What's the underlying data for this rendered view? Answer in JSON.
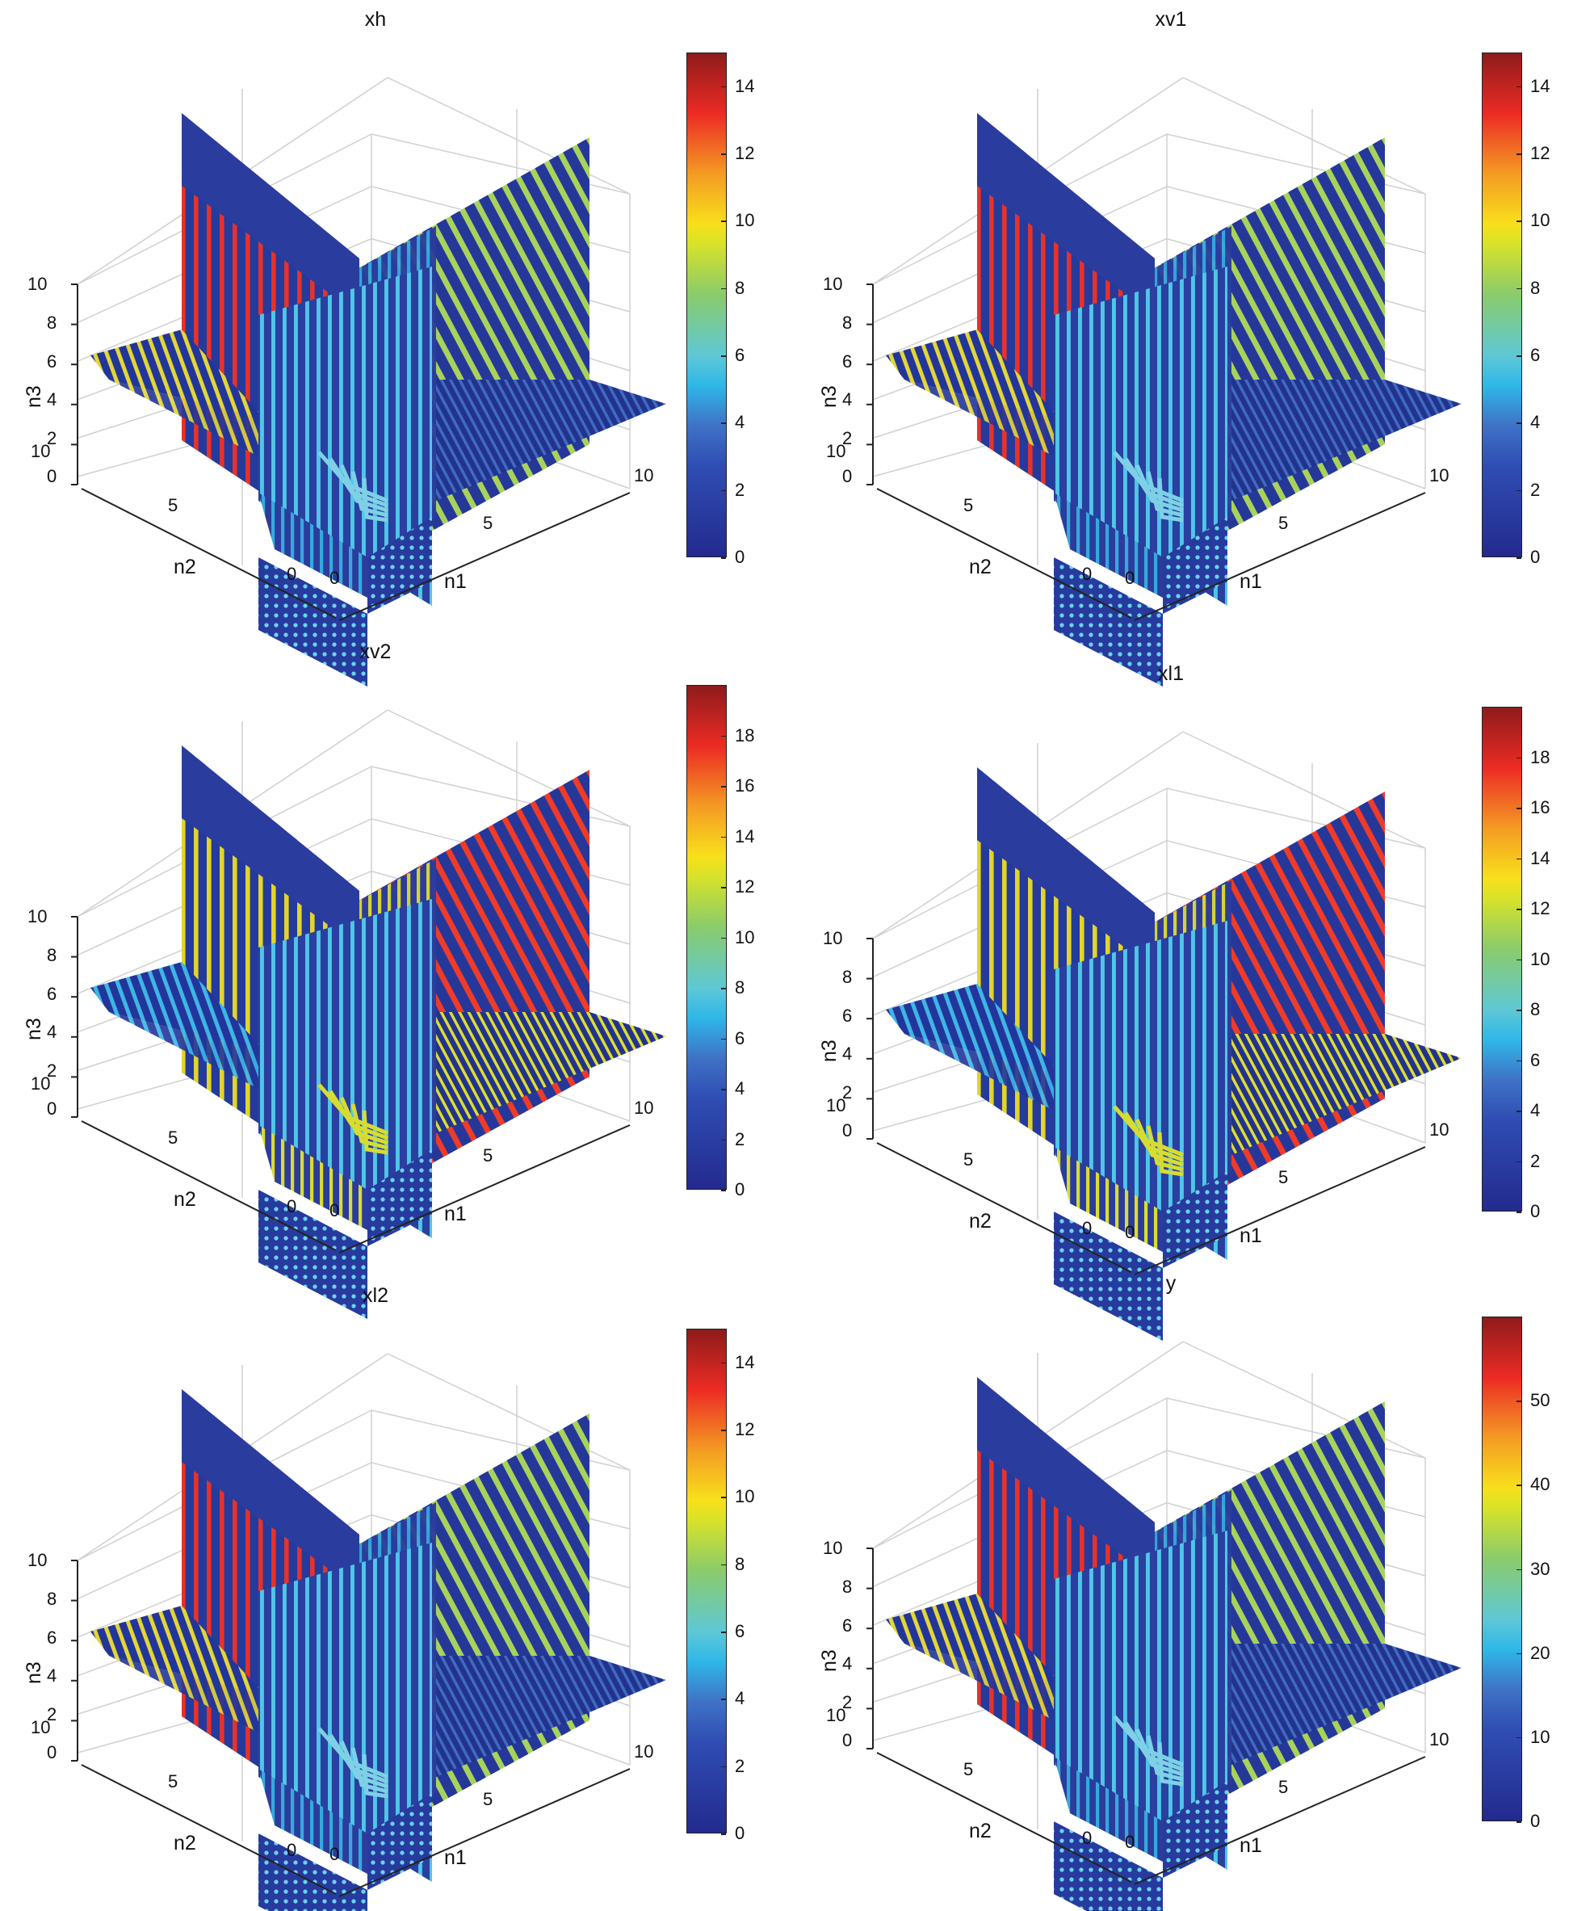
{
  "figure": {
    "layout": "3 rows x 2 columns of MATLAB slice() plots",
    "panels": [
      {
        "id": "xh",
        "title": "xh",
        "cbar_max": 15,
        "cbar_ticks": [
          "0",
          "2",
          "4",
          "6",
          "8",
          "10",
          "12",
          "14"
        ],
        "peak_color": "#e8312a"
      },
      {
        "id": "xv1",
        "title": "xv1",
        "cbar_max": 15,
        "cbar_ticks": [
          "0",
          "2",
          "4",
          "6",
          "8",
          "10",
          "12",
          "14"
        ],
        "peak_color": "#e8312a"
      },
      {
        "id": "xv2",
        "title": "xv2",
        "cbar_max": 20,
        "cbar_ticks": [
          "0",
          "2",
          "4",
          "6",
          "8",
          "10",
          "12",
          "14",
          "16",
          "18"
        ],
        "peak_color": "#d62a25"
      },
      {
        "id": "xl1",
        "title": "xl1",
        "cbar_max": 20,
        "cbar_ticks": [
          "0",
          "2",
          "4",
          "6",
          "8",
          "10",
          "12",
          "14",
          "16",
          "18"
        ],
        "peak_color": "#d62a25"
      },
      {
        "id": "xl2",
        "title": "xl2",
        "cbar_max": 15,
        "cbar_ticks": [
          "0",
          "2",
          "4",
          "6",
          "8",
          "10",
          "12",
          "14"
        ],
        "peak_color": "#e8312a"
      },
      {
        "id": "y",
        "title": "y",
        "cbar_max": 60,
        "cbar_ticks": [
          "0",
          "10",
          "20",
          "30",
          "40",
          "50"
        ],
        "peak_color": "#e8312a"
      }
    ],
    "axes": {
      "xlabel": "n1",
      "ylabel": "n2",
      "zlabel": "n3",
      "n1_ticks": [
        "0",
        "5",
        "10"
      ],
      "n2_ticks": [
        "0",
        "5",
        "10"
      ],
      "n3_ticks": [
        "0",
        "2",
        "4",
        "6",
        "8",
        "10"
      ]
    },
    "colormap": "jet"
  },
  "chart_data": [
    {
      "type": "heatmap",
      "title": "xh",
      "subtype": "3D volume slices",
      "xlabel": "n1",
      "ylabel": "n2",
      "zlabel": "n3",
      "xlim": [
        0,
        10
      ],
      "ylim": [
        0,
        10
      ],
      "zlim": [
        0,
        10
      ],
      "slices": {
        "n1": 2.5,
        "n2": 2.5,
        "n3": 3
      },
      "colorbar": {
        "min": 0,
        "max": 15,
        "ticks": [
          0,
          2,
          4,
          6,
          8,
          10,
          12,
          14
        ]
      },
      "colormap": "jet",
      "grid": true
    },
    {
      "type": "heatmap",
      "title": "xv1",
      "subtype": "3D volume slices",
      "xlabel": "n1",
      "ylabel": "n2",
      "zlabel": "n3",
      "xlim": [
        0,
        10
      ],
      "ylim": [
        0,
        10
      ],
      "zlim": [
        0,
        10
      ],
      "slices": {
        "n1": 2.5,
        "n2": 2.5,
        "n3": 3
      },
      "colorbar": {
        "min": 0,
        "max": 15,
        "ticks": [
          0,
          2,
          4,
          6,
          8,
          10,
          12,
          14
        ]
      },
      "colormap": "jet",
      "grid": true
    },
    {
      "type": "heatmap",
      "title": "xv2",
      "subtype": "3D volume slices",
      "xlabel": "n1",
      "ylabel": "n2",
      "zlabel": "n3",
      "xlim": [
        0,
        10
      ],
      "ylim": [
        0,
        10
      ],
      "zlim": [
        0,
        10
      ],
      "slices": {
        "n1": 2.5,
        "n2": 2.5,
        "n3": 3
      },
      "colorbar": {
        "min": 0,
        "max": 20,
        "ticks": [
          0,
          2,
          4,
          6,
          8,
          10,
          12,
          14,
          16,
          18
        ]
      },
      "colormap": "jet",
      "grid": true
    },
    {
      "type": "heatmap",
      "title": "xl1",
      "subtype": "3D volume slices",
      "xlabel": "n1",
      "ylabel": "n2",
      "zlabel": "n3",
      "xlim": [
        0,
        10
      ],
      "ylim": [
        0,
        10
      ],
      "zlim": [
        0,
        10
      ],
      "slices": {
        "n1": 2.5,
        "n2": 2.5,
        "n3": 3
      },
      "colorbar": {
        "min": 0,
        "max": 20,
        "ticks": [
          0,
          2,
          4,
          6,
          8,
          10,
          12,
          14,
          16,
          18
        ]
      },
      "colormap": "jet",
      "grid": true
    },
    {
      "type": "heatmap",
      "title": "xl2",
      "subtype": "3D volume slices",
      "xlabel": "n1",
      "ylabel": "n2",
      "zlabel": "n3",
      "xlim": [
        0,
        10
      ],
      "ylim": [
        0,
        10
      ],
      "zlim": [
        0,
        10
      ],
      "slices": {
        "n1": 2.5,
        "n2": 2.5,
        "n3": 3
      },
      "colorbar": {
        "min": 0,
        "max": 15,
        "ticks": [
          0,
          2,
          4,
          6,
          8,
          10,
          12,
          14
        ]
      },
      "colormap": "jet",
      "grid": true
    },
    {
      "type": "heatmap",
      "title": "y",
      "subtype": "3D volume slices",
      "xlabel": "n1",
      "ylabel": "n2",
      "zlabel": "n3",
      "xlim": [
        0,
        10
      ],
      "ylim": [
        0,
        10
      ],
      "zlim": [
        0,
        10
      ],
      "slices": {
        "n1": 2.5,
        "n2": 2.5,
        "n3": 3
      },
      "colorbar": {
        "min": 0,
        "max": 60,
        "ticks": [
          0,
          10,
          20,
          30,
          40,
          50
        ]
      },
      "colormap": "jet",
      "grid": true
    }
  ]
}
